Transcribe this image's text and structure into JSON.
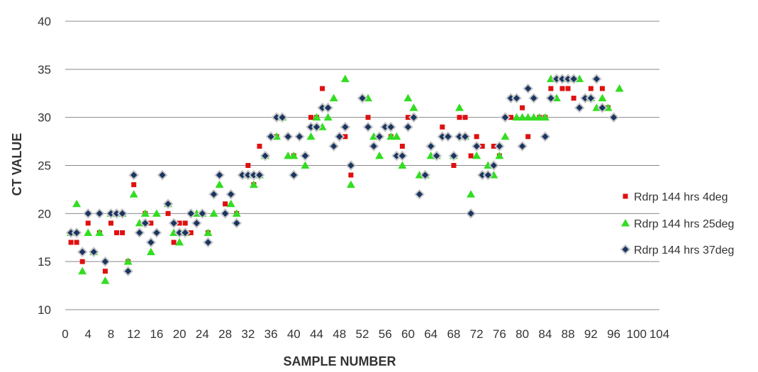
{
  "chart_data": {
    "type": "scatter",
    "xlabel": "SAMPLE NUMBER",
    "ylabel": "CT VALUE",
    "xlim": [
      0,
      104
    ],
    "ylim": [
      10,
      40
    ],
    "x_ticks": [
      0,
      4,
      8,
      12,
      16,
      20,
      24,
      28,
      32,
      36,
      40,
      44,
      48,
      52,
      56,
      60,
      64,
      68,
      72,
      76,
      80,
      84,
      88,
      92,
      96,
      100,
      104
    ],
    "y_ticks": [
      10,
      15,
      20,
      25,
      30,
      35,
      40
    ],
    "grid": "horizontal",
    "legend_position": "right",
    "colors": {
      "s1": "#e01010",
      "s2": "#33dd22",
      "s3": "#1a3560"
    },
    "series": [
      {
        "name": "Rdrp 144 hrs 4deg",
        "marker": "square",
        "color": "#e01010",
        "points": [
          [
            1,
            17
          ],
          [
            2,
            17
          ],
          [
            3,
            15
          ],
          [
            4,
            19
          ],
          [
            6,
            18
          ],
          [
            7,
            14
          ],
          [
            8,
            19
          ],
          [
            9,
            18
          ],
          [
            10,
            18
          ],
          [
            11,
            15
          ],
          [
            12,
            23
          ],
          [
            14,
            20
          ],
          [
            15,
            19
          ],
          [
            18,
            20
          ],
          [
            19,
            17
          ],
          [
            20,
            19
          ],
          [
            21,
            19
          ],
          [
            22,
            18
          ],
          [
            24,
            20
          ],
          [
            25,
            18
          ],
          [
            28,
            21
          ],
          [
            30,
            20
          ],
          [
            32,
            24
          ],
          [
            32,
            25
          ],
          [
            33,
            23
          ],
          [
            34,
            27
          ],
          [
            35,
            26
          ],
          [
            37,
            28
          ],
          [
            38,
            30
          ],
          [
            39,
            28
          ],
          [
            40,
            26
          ],
          [
            42,
            26
          ],
          [
            43,
            30
          ],
          [
            44,
            30
          ],
          [
            45,
            33
          ],
          [
            48,
            28
          ],
          [
            49,
            28
          ],
          [
            50,
            24
          ],
          [
            53,
            30
          ],
          [
            55,
            28
          ],
          [
            57,
            28
          ],
          [
            59,
            27
          ],
          [
            60,
            30
          ],
          [
            61,
            30
          ],
          [
            66,
            29
          ],
          [
            68,
            25
          ],
          [
            69,
            30
          ],
          [
            70,
            30
          ],
          [
            71,
            26
          ],
          [
            72,
            28
          ],
          [
            73,
            27
          ],
          [
            75,
            27
          ],
          [
            76,
            26
          ],
          [
            78,
            30
          ],
          [
            80,
            31
          ],
          [
            81,
            28
          ],
          [
            82,
            32
          ],
          [
            83,
            30
          ],
          [
            84,
            30
          ],
          [
            85,
            33
          ],
          [
            87,
            33
          ],
          [
            88,
            33
          ],
          [
            89,
            32
          ],
          [
            92,
            33
          ],
          [
            93,
            34
          ],
          [
            94,
            33
          ],
          [
            95,
            31
          ]
        ]
      },
      {
        "name": "Rdrp 144 hrs 25deg",
        "marker": "triangle",
        "color": "#33dd22",
        "points": [
          [
            1,
            18
          ],
          [
            2,
            21
          ],
          [
            3,
            14
          ],
          [
            4,
            18
          ],
          [
            5,
            16
          ],
          [
            6,
            18
          ],
          [
            7,
            13
          ],
          [
            8,
            20
          ],
          [
            9,
            20
          ],
          [
            10,
            20
          ],
          [
            11,
            15
          ],
          [
            12,
            22
          ],
          [
            13,
            19
          ],
          [
            14,
            20
          ],
          [
            15,
            16
          ],
          [
            16,
            20
          ],
          [
            18,
            21
          ],
          [
            19,
            18
          ],
          [
            20,
            17
          ],
          [
            21,
            18
          ],
          [
            23,
            20
          ],
          [
            24,
            20
          ],
          [
            25,
            18
          ],
          [
            26,
            20
          ],
          [
            27,
            23
          ],
          [
            29,
            21
          ],
          [
            30,
            20
          ],
          [
            32,
            24
          ],
          [
            33,
            23
          ],
          [
            34,
            24
          ],
          [
            35,
            26
          ],
          [
            37,
            28
          ],
          [
            38,
            30
          ],
          [
            39,
            26
          ],
          [
            40,
            26
          ],
          [
            42,
            25
          ],
          [
            43,
            28
          ],
          [
            44,
            30
          ],
          [
            45,
            29
          ],
          [
            46,
            30
          ],
          [
            47,
            32
          ],
          [
            49,
            34
          ],
          [
            50,
            23
          ],
          [
            53,
            32
          ],
          [
            54,
            28
          ],
          [
            55,
            26
          ],
          [
            57,
            28
          ],
          [
            58,
            28
          ],
          [
            59,
            25
          ],
          [
            60,
            32
          ],
          [
            61,
            31
          ],
          [
            62,
            24
          ],
          [
            63,
            24
          ],
          [
            64,
            26
          ],
          [
            65,
            26
          ],
          [
            68,
            26
          ],
          [
            69,
            31
          ],
          [
            70,
            28
          ],
          [
            71,
            22
          ],
          [
            72,
            26
          ],
          [
            74,
            25
          ],
          [
            75,
            24
          ],
          [
            76,
            26
          ],
          [
            77,
            28
          ],
          [
            79,
            30
          ],
          [
            80,
            30
          ],
          [
            81,
            30
          ],
          [
            82,
            30
          ],
          [
            83,
            30
          ],
          [
            84,
            30
          ],
          [
            85,
            34
          ],
          [
            86,
            32
          ],
          [
            88,
            34
          ],
          [
            89,
            34
          ],
          [
            90,
            34
          ],
          [
            92,
            32
          ],
          [
            93,
            31
          ],
          [
            94,
            32
          ],
          [
            95,
            31
          ],
          [
            97,
            33
          ]
        ]
      },
      {
        "name": "Rdrp 144 hrs 37deg",
        "marker": "diamond",
        "color": "#1a3560",
        "points": [
          [
            1,
            18
          ],
          [
            2,
            18
          ],
          [
            3,
            16
          ],
          [
            4,
            20
          ],
          [
            5,
            16
          ],
          [
            6,
            20
          ],
          [
            7,
            15
          ],
          [
            8,
            20
          ],
          [
            9,
            20
          ],
          [
            10,
            20
          ],
          [
            11,
            14
          ],
          [
            12,
            24
          ],
          [
            13,
            18
          ],
          [
            14,
            19
          ],
          [
            15,
            17
          ],
          [
            16,
            18
          ],
          [
            17,
            24
          ],
          [
            18,
            21
          ],
          [
            19,
            19
          ],
          [
            20,
            18
          ],
          [
            21,
            18
          ],
          [
            22,
            20
          ],
          [
            23,
            19
          ],
          [
            24,
            20
          ],
          [
            25,
            17
          ],
          [
            26,
            22
          ],
          [
            27,
            24
          ],
          [
            28,
            20
          ],
          [
            29,
            22
          ],
          [
            30,
            19
          ],
          [
            31,
            24
          ],
          [
            32,
            24
          ],
          [
            33,
            24
          ],
          [
            34,
            24
          ],
          [
            35,
            26
          ],
          [
            36,
            28
          ],
          [
            37,
            30
          ],
          [
            38,
            30
          ],
          [
            39,
            28
          ],
          [
            40,
            24
          ],
          [
            41,
            28
          ],
          [
            42,
            26
          ],
          [
            43,
            29
          ],
          [
            44,
            29
          ],
          [
            45,
            31
          ],
          [
            46,
            31
          ],
          [
            47,
            27
          ],
          [
            48,
            28
          ],
          [
            49,
            29
          ],
          [
            50,
            25
          ],
          [
            52,
            32
          ],
          [
            53,
            29
          ],
          [
            54,
            27
          ],
          [
            55,
            28
          ],
          [
            56,
            29
          ],
          [
            57,
            29
          ],
          [
            58,
            26
          ],
          [
            59,
            26
          ],
          [
            60,
            29
          ],
          [
            61,
            30
          ],
          [
            62,
            22
          ],
          [
            63,
            24
          ],
          [
            64,
            27
          ],
          [
            65,
            26
          ],
          [
            66,
            28
          ],
          [
            67,
            28
          ],
          [
            68,
            26
          ],
          [
            69,
            28
          ],
          [
            70,
            28
          ],
          [
            71,
            20
          ],
          [
            72,
            27
          ],
          [
            73,
            24
          ],
          [
            74,
            24
          ],
          [
            75,
            25
          ],
          [
            76,
            27
          ],
          [
            77,
            30
          ],
          [
            78,
            32
          ],
          [
            79,
            32
          ],
          [
            80,
            27
          ],
          [
            81,
            33
          ],
          [
            82,
            32
          ],
          [
            84,
            28
          ],
          [
            85,
            32
          ],
          [
            86,
            34
          ],
          [
            87,
            34
          ],
          [
            88,
            34
          ],
          [
            89,
            34
          ],
          [
            90,
            31
          ],
          [
            91,
            32
          ],
          [
            92,
            32
          ],
          [
            93,
            34
          ],
          [
            94,
            31
          ],
          [
            96,
            30
          ]
        ]
      }
    ]
  }
}
